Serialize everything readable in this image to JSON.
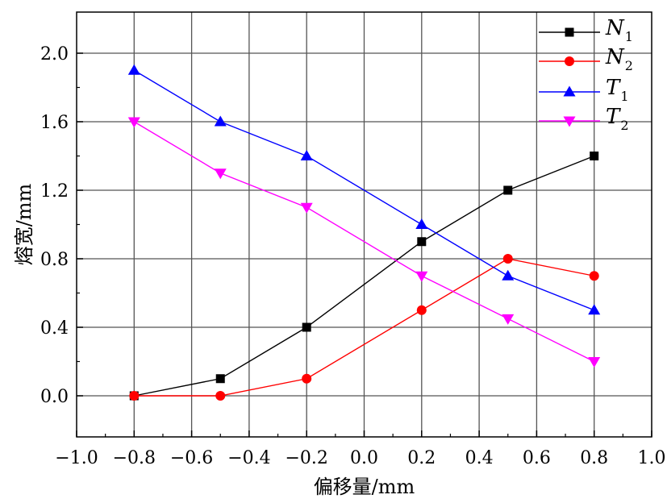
{
  "chart_data": {
    "type": "line",
    "xlabel": "偏移量/mm",
    "ylabel": "熔宽/mm",
    "xlim": [
      -1.0,
      1.0
    ],
    "ylim": [
      -0.24,
      2.24
    ],
    "x_ticks": [
      -1.0,
      -0.8,
      -0.6,
      -0.4,
      -0.2,
      0.0,
      0.2,
      0.4,
      0.6,
      0.8,
      1.0
    ],
    "x_tick_labels": [
      "−1.0",
      "−0.8",
      "−0.6",
      "−0.4",
      "−0.2",
      "0.0",
      "0.2",
      "0.4",
      "0.6",
      "0.8",
      "1.0"
    ],
    "y_ticks": [
      0.0,
      0.4,
      0.8,
      1.2,
      1.6,
      2.0
    ],
    "y_tick_labels": [
      "0.0",
      "0.4",
      "0.8",
      "1.2",
      "1.6",
      "2.0"
    ],
    "grid": true,
    "legend_position": "top-right",
    "x": [
      -0.8,
      -0.5,
      -0.2,
      0.2,
      0.5,
      0.8
    ],
    "series": [
      {
        "name": "N",
        "sub": "1",
        "color": "#000000",
        "marker": "square",
        "values": [
          0.0,
          0.1,
          0.4,
          0.9,
          1.2,
          1.4
        ]
      },
      {
        "name": "N",
        "sub": "2",
        "color": "#ff0000",
        "marker": "circle",
        "values": [
          0.0,
          0.0,
          0.1,
          0.5,
          0.8,
          0.7
        ]
      },
      {
        "name": "T",
        "sub": "1",
        "color": "#0000ff",
        "marker": "triangle-up",
        "values": [
          1.9,
          1.6,
          1.4,
          1.0,
          0.7,
          0.5
        ]
      },
      {
        "name": "T",
        "sub": "2",
        "color": "#ff00ff",
        "marker": "triangle-down",
        "values": [
          1.6,
          1.3,
          1.1,
          0.7,
          0.45,
          0.2
        ]
      }
    ]
  }
}
